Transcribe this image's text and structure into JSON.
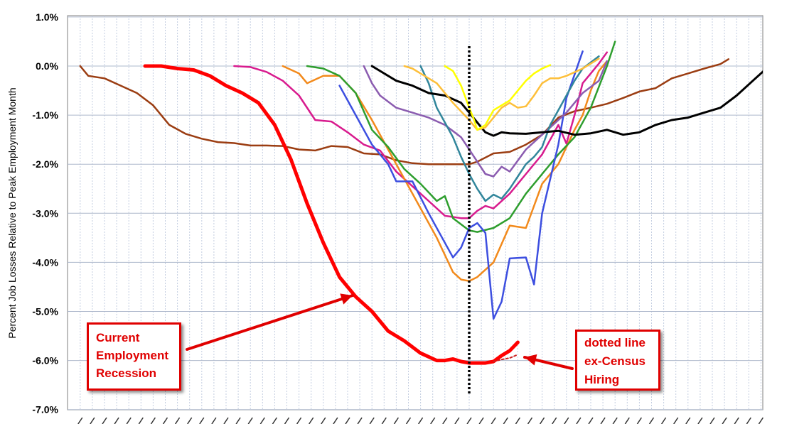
{
  "chart_data": {
    "type": "line",
    "ylabel": "Percent Job Losses Relative to Peak Employment Month",
    "xlabel": "",
    "ylim": [
      -7,
      1
    ],
    "yticks": [
      1,
      0,
      -1,
      -2,
      -3,
      -4,
      -5,
      -6,
      -7
    ],
    "ytick_labels": [
      "1.0%",
      "0.0%",
      "-1.0%",
      "-2.0%",
      "-3.0%",
      "-4.0%",
      "-5.0%",
      "-6.0%",
      "-7.0%"
    ],
    "xlim": [
      -48,
      36
    ],
    "x_label_step": 1.5,
    "grid": true,
    "legend": "none",
    "reference_line": {
      "x": 0,
      "style": "dotted",
      "color": "#000000"
    },
    "series": [
      {
        "color": "#9b3d12",
        "width": 2.5,
        "points": [
          [
            -48,
            0
          ],
          [
            -47,
            -0.2
          ],
          [
            -45,
            -0.25
          ],
          [
            -43,
            -0.4
          ],
          [
            -41,
            -0.55
          ],
          [
            -39,
            -0.8
          ],
          [
            -37,
            -1.2
          ],
          [
            -35,
            -1.38
          ],
          [
            -33,
            -1.48
          ],
          [
            -31,
            -1.55
          ],
          [
            -29,
            -1.57
          ],
          [
            -27,
            -1.62
          ],
          [
            -25,
            -1.62
          ],
          [
            -23,
            -1.63
          ],
          [
            -21,
            -1.7
          ],
          [
            -19,
            -1.72
          ],
          [
            -17,
            -1.63
          ],
          [
            -15,
            -1.65
          ],
          [
            -13,
            -1.78
          ],
          [
            -11,
            -1.8
          ],
          [
            -9,
            -1.92
          ],
          [
            -7,
            -1.98
          ],
          [
            -5,
            -2.0
          ],
          [
            -3,
            -2.0
          ],
          [
            -1,
            -2.0
          ],
          [
            0,
            -2.0
          ],
          [
            1,
            -1.95
          ],
          [
            3,
            -1.78
          ],
          [
            5,
            -1.75
          ],
          [
            7,
            -1.6
          ],
          [
            9,
            -1.4
          ],
          [
            11,
            -1.05
          ],
          [
            13,
            -0.92
          ],
          [
            15,
            -0.85
          ],
          [
            17,
            -0.77
          ],
          [
            19,
            -0.65
          ],
          [
            21,
            -0.52
          ],
          [
            23,
            -0.45
          ],
          [
            25,
            -0.25
          ],
          [
            27,
            -0.15
          ],
          [
            29,
            -0.05
          ],
          [
            31,
            0.04
          ],
          [
            32,
            0.14
          ]
        ]
      },
      {
        "color": "#ff0000",
        "width": 5,
        "points": [
          [
            -40,
            0
          ],
          [
            -38,
            0
          ],
          [
            -36,
            -0.05
          ],
          [
            -34,
            -0.08
          ],
          [
            -32,
            -0.2
          ],
          [
            -30,
            -0.4
          ],
          [
            -28,
            -0.55
          ],
          [
            -26,
            -0.75
          ],
          [
            -24,
            -1.2
          ],
          [
            -22,
            -1.9
          ],
          [
            -20,
            -2.8
          ],
          [
            -18,
            -3.6
          ],
          [
            -16,
            -4.3
          ],
          [
            -14,
            -4.7
          ],
          [
            -12,
            -5.0
          ],
          [
            -10,
            -5.4
          ],
          [
            -8,
            -5.6
          ],
          [
            -6,
            -5.85
          ],
          [
            -4,
            -6.0
          ],
          [
            -3,
            -6.0
          ],
          [
            -2,
            -5.97
          ],
          [
            -1,
            -6.02
          ],
          [
            0,
            -6.05
          ],
          [
            1,
            -6.05
          ],
          [
            2,
            -6.05
          ],
          [
            3,
            -6.02
          ],
          [
            4,
            -5.9
          ],
          [
            5,
            -5.8
          ],
          [
            6,
            -5.63
          ]
        ]
      },
      {
        "color": "#cc2222",
        "width": 2,
        "dashed": true,
        "points": [
          [
            3,
            -6.02
          ],
          [
            4,
            -5.98
          ],
          [
            5,
            -5.95
          ],
          [
            6,
            -5.88
          ]
        ]
      },
      {
        "color": "#d81b8e",
        "width": 2.5,
        "points": [
          [
            -29,
            0
          ],
          [
            -27,
            -0.02
          ],
          [
            -25,
            -0.12
          ],
          [
            -23,
            -0.3
          ],
          [
            -21,
            -0.6
          ],
          [
            -19,
            -1.1
          ],
          [
            -17,
            -1.13
          ],
          [
            -15,
            -1.35
          ],
          [
            -13,
            -1.6
          ],
          [
            -11,
            -1.72
          ],
          [
            -9,
            -2.15
          ],
          [
            -7,
            -2.45
          ],
          [
            -5,
            -2.75
          ],
          [
            -3,
            -3.05
          ],
          [
            -1,
            -3.1
          ],
          [
            0,
            -3.1
          ],
          [
            1,
            -2.95
          ],
          [
            2,
            -2.85
          ],
          [
            3,
            -2.9
          ],
          [
            5,
            -2.6
          ],
          [
            7,
            -2.2
          ],
          [
            9,
            -1.8
          ],
          [
            11,
            -1.2
          ],
          [
            12,
            -1.58
          ],
          [
            13,
            -1.0
          ],
          [
            14,
            -0.35
          ],
          [
            15,
            -0.15
          ],
          [
            16,
            0.05
          ],
          [
            17,
            0.28
          ]
        ]
      },
      {
        "color": "#f28a1c",
        "width": 2.5,
        "points": [
          [
            -23,
            0
          ],
          [
            -21,
            -0.15
          ],
          [
            -20,
            -0.35
          ],
          [
            -18,
            -0.2
          ],
          [
            -16,
            -0.2
          ],
          [
            -14,
            -0.55
          ],
          [
            -12,
            -1.1
          ],
          [
            -10,
            -1.7
          ],
          [
            -8,
            -2.3
          ],
          [
            -6,
            -2.9
          ],
          [
            -4,
            -3.5
          ],
          [
            -2,
            -4.2
          ],
          [
            -1,
            -4.35
          ],
          [
            0,
            -4.38
          ],
          [
            1,
            -4.3
          ],
          [
            3,
            -4.0
          ],
          [
            5,
            -3.25
          ],
          [
            7,
            -3.3
          ],
          [
            9,
            -2.4
          ],
          [
            11,
            -2.0
          ],
          [
            13,
            -1.3
          ],
          [
            14,
            -1.0
          ],
          [
            15,
            -0.5
          ],
          [
            16,
            -0.1
          ],
          [
            17,
            0.1
          ]
        ]
      },
      {
        "color": "#2e9e2e",
        "width": 2.5,
        "points": [
          [
            -20,
            0
          ],
          [
            -18,
            -0.05
          ],
          [
            -16,
            -0.2
          ],
          [
            -14,
            -0.55
          ],
          [
            -12,
            -1.3
          ],
          [
            -10,
            -1.65
          ],
          [
            -8,
            -2.1
          ],
          [
            -6,
            -2.4
          ],
          [
            -4,
            -2.75
          ],
          [
            -3,
            -2.65
          ],
          [
            -2,
            -3.1
          ],
          [
            0,
            -3.35
          ],
          [
            1,
            -3.38
          ],
          [
            3,
            -3.3
          ],
          [
            5,
            -3.1
          ],
          [
            7,
            -2.6
          ],
          [
            9,
            -2.2
          ],
          [
            11,
            -1.8
          ],
          [
            13,
            -1.45
          ],
          [
            15,
            -0.85
          ],
          [
            17,
            0.0
          ],
          [
            18,
            0.5
          ]
        ]
      },
      {
        "color": "#3d4fe0",
        "width": 2.5,
        "points": [
          [
            -16,
            -0.4
          ],
          [
            -14,
            -1.0
          ],
          [
            -12,
            -1.6
          ],
          [
            -10,
            -2.0
          ],
          [
            -9,
            -2.35
          ],
          [
            -7,
            -2.35
          ],
          [
            -5,
            -3.0
          ],
          [
            -3,
            -3.6
          ],
          [
            -2,
            -3.9
          ],
          [
            -1,
            -3.7
          ],
          [
            0,
            -3.3
          ],
          [
            1,
            -3.2
          ],
          [
            2,
            -3.4
          ],
          [
            3,
            -5.15
          ],
          [
            4,
            -4.8
          ],
          [
            5,
            -3.92
          ],
          [
            7,
            -3.9
          ],
          [
            8,
            -4.45
          ],
          [
            9,
            -3.0
          ],
          [
            11,
            -1.6
          ],
          [
            12,
            -0.65
          ],
          [
            14,
            0.3
          ]
        ]
      },
      {
        "color": "#8b5cb0",
        "width": 2.5,
        "points": [
          [
            -13,
            0
          ],
          [
            -12,
            -0.35
          ],
          [
            -11,
            -0.6
          ],
          [
            -9,
            -0.85
          ],
          [
            -7,
            -0.95
          ],
          [
            -5,
            -1.05
          ],
          [
            -3,
            -1.2
          ],
          [
            -1,
            -1.45
          ],
          [
            1,
            -1.95
          ],
          [
            2,
            -2.2
          ],
          [
            3,
            -2.25
          ],
          [
            4,
            -2.05
          ],
          [
            5,
            -2.15
          ],
          [
            7,
            -1.7
          ],
          [
            9,
            -1.4
          ],
          [
            10,
            -1.25
          ],
          [
            12,
            -0.95
          ],
          [
            14,
            -0.55
          ],
          [
            16,
            -0.3
          ],
          [
            17,
            0.1
          ]
        ]
      },
      {
        "color": "#31869b",
        "width": 2.5,
        "points": [
          [
            -6,
            0
          ],
          [
            -5,
            -0.35
          ],
          [
            -4,
            -0.85
          ],
          [
            -2,
            -1.45
          ],
          [
            -1,
            -1.85
          ],
          [
            0,
            -2.2
          ],
          [
            1,
            -2.5
          ],
          [
            2,
            -2.75
          ],
          [
            3,
            -2.62
          ],
          [
            4,
            -2.7
          ],
          [
            5,
            -2.5
          ],
          [
            6,
            -2.25
          ],
          [
            7,
            -2.0
          ],
          [
            8,
            -1.85
          ],
          [
            9,
            -1.65
          ],
          [
            10,
            -1.2
          ],
          [
            12,
            -0.6
          ],
          [
            13,
            -0.3
          ],
          [
            14,
            -0.05
          ],
          [
            16,
            0.2
          ]
        ]
      },
      {
        "color": "#000000",
        "width": 3,
        "points": [
          [
            -12,
            0
          ],
          [
            -11,
            -0.1
          ],
          [
            -9,
            -0.3
          ],
          [
            -7,
            -0.4
          ],
          [
            -5,
            -0.55
          ],
          [
            -3,
            -0.6
          ],
          [
            -1,
            -0.75
          ],
          [
            0,
            -0.95
          ],
          [
            1,
            -1.15
          ],
          [
            2,
            -1.35
          ],
          [
            3,
            -1.42
          ],
          [
            4,
            -1.35
          ],
          [
            5,
            -1.37
          ],
          [
            7,
            -1.38
          ],
          [
            9,
            -1.35
          ],
          [
            11,
            -1.32
          ],
          [
            13,
            -1.4
          ],
          [
            15,
            -1.37
          ],
          [
            17,
            -1.3
          ],
          [
            19,
            -1.4
          ],
          [
            21,
            -1.35
          ],
          [
            23,
            -1.2
          ],
          [
            25,
            -1.1
          ],
          [
            27,
            -1.05
          ],
          [
            29,
            -0.95
          ],
          [
            31,
            -0.85
          ],
          [
            33,
            -0.6
          ],
          [
            35,
            -0.3
          ],
          [
            37,
            0.0
          ],
          [
            39,
            0.25
          ]
        ]
      },
      {
        "color": "#fdbf3a",
        "width": 2.5,
        "points": [
          [
            -8,
            0
          ],
          [
            -7,
            -0.05
          ],
          [
            -6,
            -0.15
          ],
          [
            -4,
            -0.35
          ],
          [
            -2,
            -0.75
          ],
          [
            0,
            -1.1
          ],
          [
            1,
            -1.3
          ],
          [
            2,
            -1.25
          ],
          [
            3,
            -1.05
          ],
          [
            4,
            -0.85
          ],
          [
            5,
            -0.75
          ],
          [
            6,
            -0.85
          ],
          [
            7,
            -0.82
          ],
          [
            8,
            -0.6
          ],
          [
            9,
            -0.35
          ],
          [
            10,
            -0.25
          ],
          [
            11,
            -0.25
          ],
          [
            12,
            -0.2
          ],
          [
            14,
            -0.05
          ],
          [
            16,
            0.15
          ]
        ]
      },
      {
        "color": "#ffff00",
        "width": 2.5,
        "points": [
          [
            -3,
            0
          ],
          [
            -2,
            -0.1
          ],
          [
            -1,
            -0.4
          ],
          [
            0,
            -0.85
          ],
          [
            0.5,
            -1.05
          ],
          [
            1,
            -1.3
          ],
          [
            2,
            -1.2
          ],
          [
            3,
            -0.9
          ],
          [
            4,
            -0.8
          ],
          [
            5,
            -0.7
          ],
          [
            6,
            -0.5
          ],
          [
            7,
            -0.3
          ],
          [
            8,
            -0.15
          ],
          [
            9,
            -0.05
          ],
          [
            10,
            0.02
          ]
        ]
      }
    ],
    "annotations": [
      {
        "lines": [
          "Current",
          "Employment",
          "Recession"
        ]
      },
      {
        "lines": [
          "dotted line",
          "ex-Census",
          "Hiring"
        ]
      }
    ]
  }
}
